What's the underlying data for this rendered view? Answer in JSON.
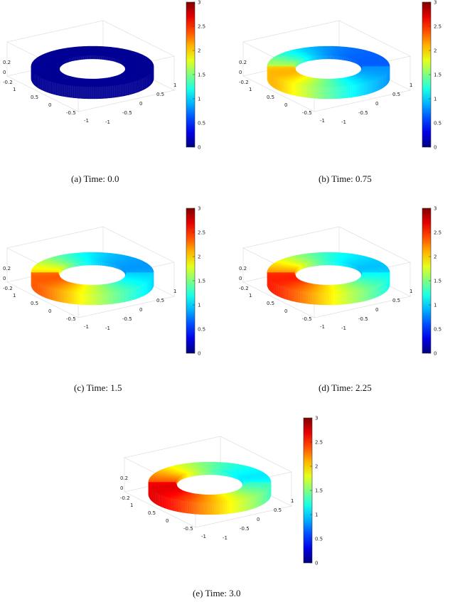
{
  "panels": [
    {
      "id": "a",
      "caption": "(a) Time: 0.0",
      "time": 0.0,
      "intensity": 0.0
    },
    {
      "id": "b",
      "caption": "(b) Time: 0.75",
      "time": 0.75,
      "intensity": 0.55
    },
    {
      "id": "c",
      "caption": "(c) Time: 1.5",
      "time": 1.5,
      "intensity": 0.75
    },
    {
      "id": "d",
      "caption": "(d) Time: 2.25",
      "time": 2.25,
      "intensity": 0.88
    },
    {
      "id": "e",
      "caption": "(e) Time: 3.0",
      "time": 3.0,
      "intensity": 1.0
    }
  ],
  "colorbar": {
    "ticks": [
      "0",
      "0.5",
      "1",
      "1.5",
      "2",
      "2.5",
      "3"
    ],
    "range": [
      0,
      3
    ],
    "colormap": "jet"
  },
  "axes": {
    "z_ticks": [
      "0.2",
      "0",
      "-0.2"
    ],
    "x_ticks": [
      "1",
      "0.5",
      "0",
      "-0.5",
      "-1"
    ],
    "y_ticks": [
      "-1",
      "-0.5",
      "0",
      "0.5",
      "1"
    ]
  }
}
